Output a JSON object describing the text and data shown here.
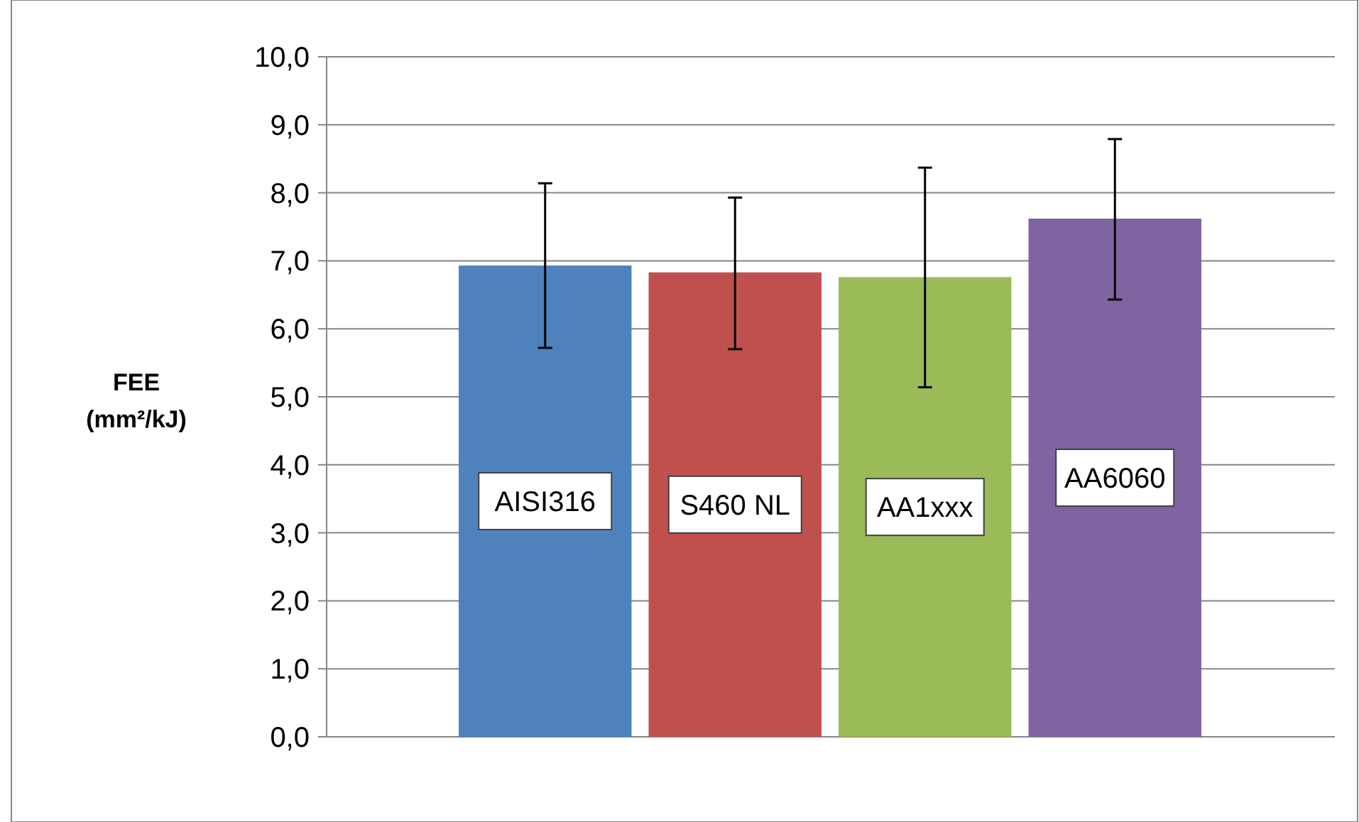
{
  "chart_data": {
    "type": "bar",
    "ylabel": "FEE (mm²/kJ)",
    "categories": [
      "AISI316",
      "S460 NL",
      "AA1xxx",
      "AA6060"
    ],
    "values": [
      6.93,
      6.83,
      6.76,
      7.62
    ],
    "colors": [
      "#4f81bd",
      "#c0504d",
      "#9bbb59",
      "#8064a2"
    ],
    "errors": [
      [
        5.72,
        8.14
      ],
      [
        5.7,
        7.93
      ],
      [
        5.14,
        8.37
      ],
      [
        6.43,
        8.79
      ]
    ],
    "ylim": [
      0,
      10
    ],
    "yticks": [
      {
        "value": 0,
        "label": "0,0"
      },
      {
        "value": 1,
        "label": "1,0"
      },
      {
        "value": 2,
        "label": "2,0"
      },
      {
        "value": 3,
        "label": "3,0"
      },
      {
        "value": 4,
        "label": "4,0"
      },
      {
        "value": 5,
        "label": "5,0"
      },
      {
        "value": 6,
        "label": "6,0"
      },
      {
        "value": 7,
        "label": "7,0"
      },
      {
        "value": 8,
        "label": "8,0"
      },
      {
        "value": 9,
        "label": "9,0"
      },
      {
        "value": 10,
        "label": "10,0"
      }
    ],
    "grid": "y"
  }
}
